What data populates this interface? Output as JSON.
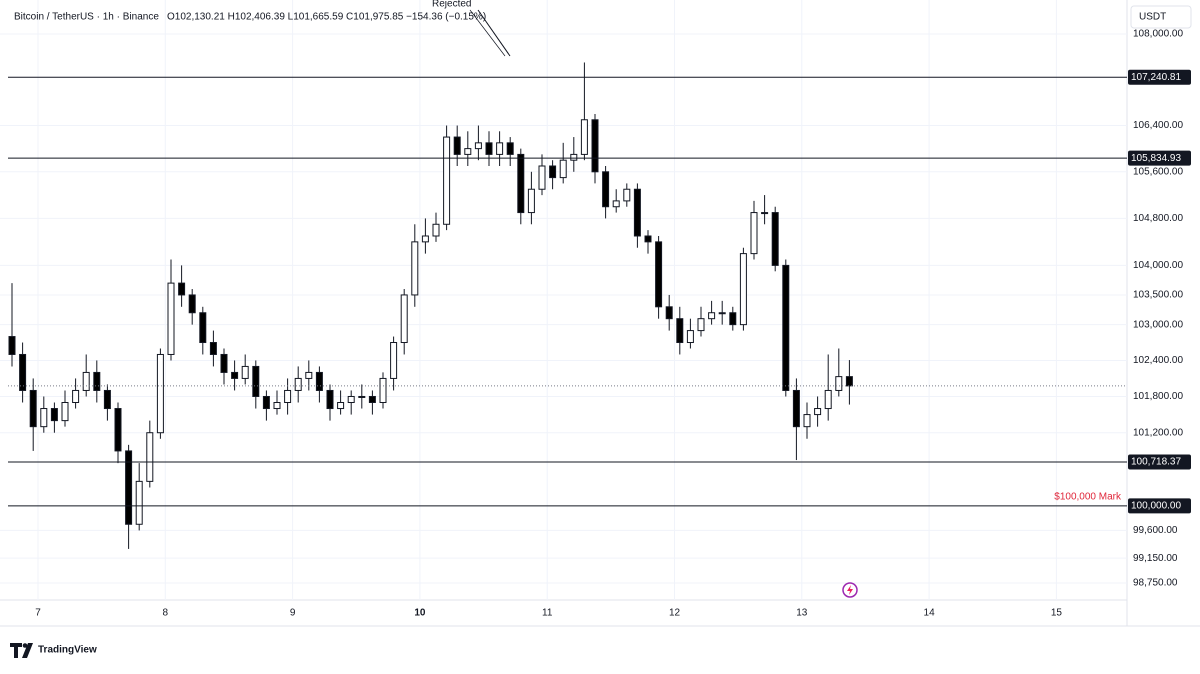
{
  "chart_data": {
    "type": "candlestick",
    "title": "Bitcoin / TetherUS · 1h · Binance",
    "ohlc_text": "O102,130.21 H102,406.39 L101,665.59 C101,975.85 −154.36 (−0.15%)",
    "currency": "USDT",
    "brand": "TradingView",
    "annotation": "Rejected",
    "mark_label": "$100,000 Mark",
    "mark_color": "#e0263a",
    "log_scale": true,
    "up_color": "#ffffff",
    "down_color": "#000000",
    "ylim": [
      98476,
      108601
    ],
    "yticks": [
      {
        "value": 108000,
        "label": "108,000.00"
      },
      {
        "value": 106400,
        "label": "106,400.00"
      },
      {
        "value": 105600,
        "label": "105,600.00"
      },
      {
        "value": 104800,
        "label": "104,800.00"
      },
      {
        "value": 104000,
        "label": "104,000.00"
      },
      {
        "value": 103500,
        "label": "103,500.00"
      },
      {
        "value": 103000,
        "label": "103,000.00"
      },
      {
        "value": 102400,
        "label": "102,400.00"
      },
      {
        "value": 101800,
        "label": "101,800.00"
      },
      {
        "value": 101200,
        "label": "101,200.00"
      },
      {
        "value": 99600,
        "label": "99,600.00"
      },
      {
        "value": 99150,
        "label": "99,150.00"
      },
      {
        "value": 98750,
        "label": "98,750.00"
      }
    ],
    "xticks": [
      "7",
      "8",
      "9",
      "10",
      "11",
      "12",
      "13",
      "14",
      "15"
    ],
    "levels": [
      {
        "value": 107240.81,
        "label": "107,240.81"
      },
      {
        "value": 105834.93,
        "label": "105,834.93"
      },
      {
        "value": 100718.37,
        "label": "100,718.37"
      },
      {
        "value": 100000,
        "label": "100,000.00"
      }
    ],
    "open": [
      102800,
      102500,
      101900,
      101300,
      101600,
      101400,
      101700,
      101900,
      102200,
      101900,
      101600,
      100900,
      99700,
      100400,
      101200,
      102500,
      103700,
      103500,
      103200,
      102700,
      102500,
      102200,
      102100,
      102300,
      101800,
      101600,
      101700,
      101900,
      102100,
      102200,
      101900,
      101600,
      101700,
      101800,
      101800,
      101700,
      102100,
      102700,
      103500,
      104400,
      104500,
      104700,
      106200,
      105900,
      106000,
      106100,
      105900,
      106100,
      105900,
      104900,
      105300,
      105700,
      105500,
      105800,
      105900,
      106500,
      105600,
      105000,
      105100,
      105300,
      104500,
      104400,
      103300,
      103100,
      102700,
      102900,
      103100,
      103200,
      103200,
      103000,
      104200,
      104900,
      104900,
      104000,
      101900,
      101300,
      101500,
      101600,
      101900,
      102130.21
    ],
    "high": [
      103700,
      102700,
      102100,
      101800,
      101700,
      101900,
      102100,
      102500,
      102400,
      102000,
      101700,
      101000,
      100700,
      101400,
      102600,
      104100,
      104000,
      103600,
      103300,
      102900,
      102600,
      102400,
      102500,
      102400,
      101900,
      101900,
      102100,
      102300,
      102400,
      102300,
      102000,
      101900,
      101900,
      102000,
      101900,
      102200,
      102800,
      103600,
      104700,
      104800,
      104900,
      106400,
      106400,
      106300,
      106400,
      106300,
      106300,
      106200,
      106000,
      105600,
      105900,
      105800,
      106100,
      106200,
      107500,
      106600,
      105700,
      105300,
      105400,
      105400,
      104600,
      104500,
      103500,
      103300,
      103100,
      103300,
      103400,
      103400,
      103300,
      104300,
      105100,
      105200,
      105000,
      104100,
      102100,
      101700,
      101800,
      102500,
      102600,
      102406.39
    ],
    "low": [
      102300,
      101700,
      100900,
      101200,
      101200,
      101300,
      101600,
      101800,
      101700,
      101400,
      100700,
      99300,
      99600,
      100300,
      101100,
      102400,
      103300,
      103000,
      102500,
      102300,
      102000,
      101900,
      102000,
      101600,
      101400,
      101500,
      101500,
      101700,
      101900,
      101700,
      101400,
      101500,
      101500,
      101600,
      101500,
      101600,
      101900,
      102500,
      103300,
      104200,
      104400,
      104600,
      105700,
      105700,
      105800,
      105700,
      105700,
      105700,
      104700,
      104700,
      105200,
      105300,
      105400,
      105600,
      105800,
      105400,
      104800,
      104900,
      105000,
      104300,
      104200,
      103100,
      102900,
      102500,
      102600,
      102800,
      103000,
      103000,
      102900,
      102900,
      104100,
      104700,
      103900,
      101800,
      100750,
      101100,
      101300,
      101400,
      101800,
      101665.59
    ],
    "close": [
      102500,
      101900,
      101300,
      101600,
      101400,
      101700,
      101900,
      102200,
      101900,
      101600,
      100900,
      99700,
      100400,
      101200,
      102500,
      103700,
      103500,
      103200,
      102700,
      102500,
      102200,
      102100,
      102300,
      101800,
      101600,
      101700,
      101900,
      102100,
      102200,
      101900,
      101600,
      101700,
      101800,
      101800,
      101700,
      102100,
      102700,
      103500,
      104400,
      104500,
      104700,
      106200,
      105900,
      106000,
      106100,
      105900,
      106100,
      105900,
      104900,
      105300,
      105700,
      105500,
      105800,
      105900,
      106500,
      105600,
      105000,
      105100,
      105300,
      104500,
      104400,
      103300,
      103100,
      102700,
      102900,
      103100,
      103200,
      103200,
      103000,
      104200,
      104900,
      104900,
      104000,
      101900,
      101300,
      101500,
      101600,
      101900,
      102130.21,
      101975.85
    ]
  }
}
